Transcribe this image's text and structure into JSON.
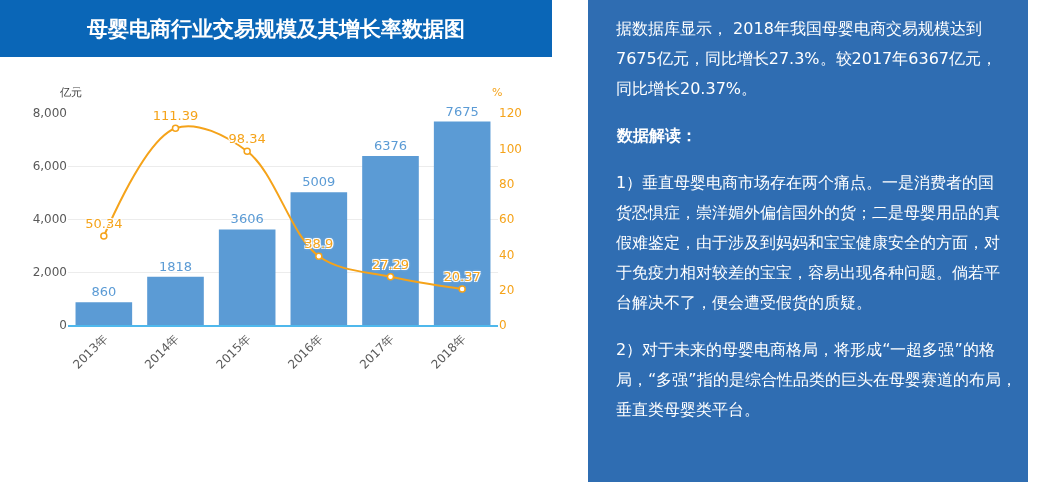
{
  "chart_data": [
    {
      "type": "bar",
      "title": "母婴电商行业交易规模及其增长率数据图",
      "ylabel": "亿元",
      "y2label": "%",
      "categories": [
        "2013年",
        "2014年",
        "2015年",
        "2016年",
        "2017年",
        "2018年"
      ],
      "series": [
        {
          "type": "bar",
          "color": "#5b9bd5",
          "values": [
            860,
            1818,
            3606,
            5009,
            6376,
            7675
          ]
        },
        {
          "type": "line",
          "axis": "y2",
          "color": "#f5a31a",
          "values": [
            50.34,
            111.39,
            98.34,
            38.9,
            27.29,
            20.37
          ]
        }
      ],
      "ylim": [
        0,
        8000
      ],
      "yticks": [
        0,
        {
          "value": 2000,
          "label": "2,000"
        },
        {
          "value": 4000,
          "label": "4,000"
        },
        {
          "value": 6000,
          "label": "6,000"
        },
        {
          "value": 8000,
          "label": "8,000"
        }
      ],
      "y2lim": [
        0,
        120
      ],
      "y2ticks": [
        0,
        20,
        40,
        60,
        80,
        100,
        120
      ],
      "grid": "y",
      "marker": "circle",
      "data_labels": true
    },
    {
      "type": "other",
      "annotations": [
        "据数据库显示， 2018年我国母婴电商交易规模达到7675亿元，同比增长27.3%。较2017年6367亿元，同比增长20.37%。"
      ]
    },
    {
      "type": "other",
      "title": "数据解读：",
      "annotations": [
        "1）垂直母婴电商市场存在两个痛点。一是消费者的国货恐惧症，崇洋媚外偏信国外的货；二是母婴用品的真假难鉴定，由于涉及到妈妈和宝宝健康安全的方面，对于免疫力相对较差的宝宝，容易出现各种问题。倘若平台解决不了，便会遭受假货的质疑。",
        "2）对于未来的母婴电商格局，将形成“一超多强”的格局，“多强”指的是综合性品类的巨头在母婴赛道的布局，垂直类母婴类平台。"
      ]
    }
  ]
}
